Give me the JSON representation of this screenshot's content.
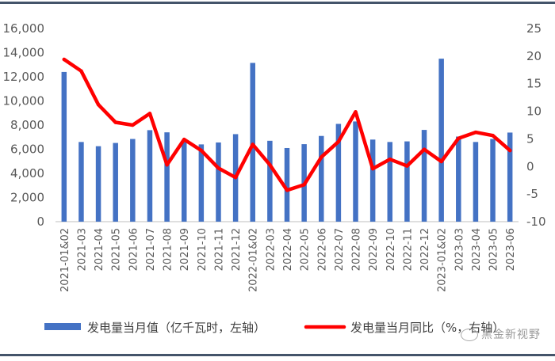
{
  "chart_data": {
    "type": "bar+line",
    "categories": [
      "2021-01&02",
      "2021-03",
      "2021-04",
      "2021-05",
      "2021-06",
      "2021-07",
      "2021-08",
      "2021-09",
      "2021-10",
      "2021-11",
      "2021-12",
      "2022-01&02",
      "2022-03",
      "2022-04",
      "2022-05",
      "2022-06",
      "2022-07",
      "2022-08",
      "2022-09",
      "2022-10",
      "2022-11",
      "2022-12",
      "2023-01&02",
      "2023-03",
      "2023-04",
      "2023-05",
      "2023-06"
    ],
    "series": [
      {
        "name": "发电量当月值（亿千瓦时，左轴）",
        "type": "bar",
        "axis": "left",
        "color": "#4472c4",
        "values": [
          12400,
          6600,
          6250,
          6520,
          6850,
          7580,
          7400,
          6700,
          6400,
          6560,
          7250,
          13150,
          6700,
          6100,
          6420,
          7100,
          8100,
          8300,
          6800,
          6600,
          6650,
          7600,
          13500,
          7050,
          6600,
          6850,
          7380
        ]
      },
      {
        "name": "发电量当月同比（%，右轴）",
        "type": "line",
        "axis": "right",
        "color": "#ff0000",
        "values": [
          19.4,
          17.3,
          11.2,
          8.0,
          7.5,
          9.6,
          0.3,
          4.9,
          2.9,
          -0.3,
          -2.0,
          4.0,
          0.3,
          -4.3,
          -3.3,
          1.7,
          4.5,
          9.9,
          -0.4,
          1.3,
          0.1,
          3.1,
          0.9,
          5.1,
          6.2,
          5.6,
          2.9
        ]
      }
    ],
    "left_axis": {
      "min": 0,
      "max": 16000,
      "step": 2000,
      "tick_labels": [
        "0",
        "2,000",
        "4,000",
        "6,000",
        "8,000",
        "10,000",
        "12,000",
        "14,000",
        "16,000"
      ]
    },
    "right_axis": {
      "min": -10,
      "max": 25,
      "step": 5,
      "tick_labels": [
        "-10",
        "-5",
        "0",
        "5",
        "10",
        "15",
        "20",
        "25"
      ]
    },
    "grid": false,
    "legend_position": "bottom",
    "title": "",
    "xlabel": "",
    "ylabel": ""
  },
  "watermark": "黑金新视野",
  "watermark_icon": "wechat-icon"
}
